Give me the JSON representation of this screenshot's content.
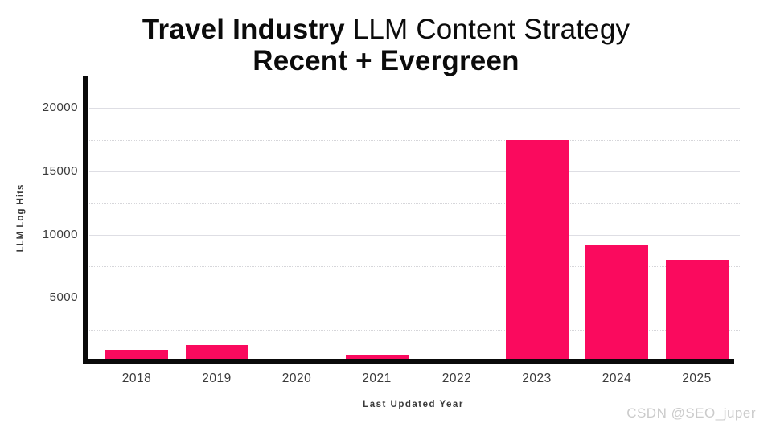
{
  "title": {
    "line1_bold": "Travel Industry",
    "line1_rest": " LLM Content Strategy",
    "line2": "Recent + Evergreen"
  },
  "watermark": "CSDN @SEO_juper",
  "colors": {
    "bar": "#FA0A5E",
    "axis": "#0a0a0a",
    "grid_major": "#dedee4",
    "grid_minor": "#d6d6da",
    "tick_text": "#3a3a3a",
    "watermark": "#cbcbcb"
  },
  "chart_data": {
    "type": "bar",
    "title": "Travel Industry LLM Content Strategy",
    "subtitle": "Recent + Evergreen",
    "categories": [
      "2018",
      "2019",
      "2020",
      "2021",
      "2022",
      "2023",
      "2024",
      "2025"
    ],
    "values": [
      900,
      1250,
      0,
      500,
      0,
      17500,
      9200,
      8000
    ],
    "xlabel": "Last Updated Year",
    "ylabel": "LLM Log Hits",
    "ylim": [
      0,
      22500
    ],
    "yticks_major": [
      5000,
      10000,
      15000,
      20000
    ],
    "yticks_minor": [
      2500,
      7500,
      12500,
      17500
    ],
    "grid": "horizontal (solid majors, dotted minors)",
    "legend_position": "none",
    "bar_color": "#FA0A5E"
  }
}
